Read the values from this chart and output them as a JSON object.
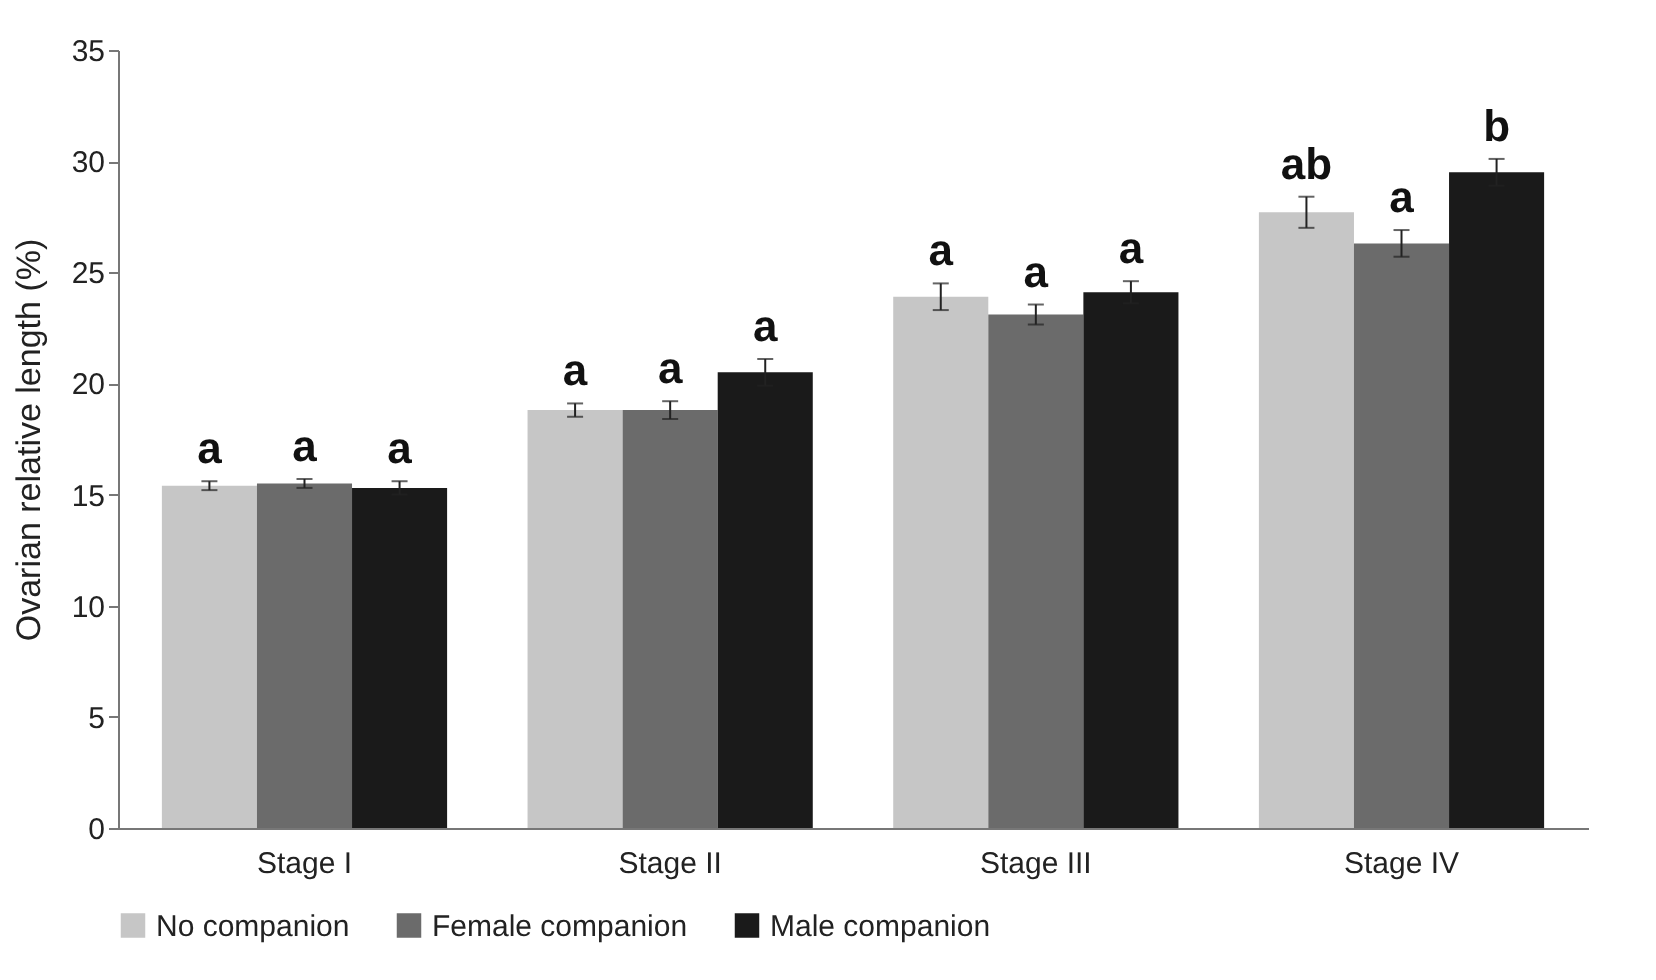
{
  "chart_data": {
    "type": "bar",
    "ylabel": "Ovarian relative length (%)",
    "categories": [
      "Stage I",
      "Stage II",
      "Stage III",
      "Stage IV"
    ],
    "series": [
      {
        "name": "No companion",
        "color": "#c6c6c6",
        "values": [
          15.4,
          18.8,
          23.9,
          27.7
        ],
        "errors": [
          0.2,
          0.3,
          0.6,
          0.7
        ]
      },
      {
        "name": "Female companion",
        "color": "#6b6b6b",
        "values": [
          15.5,
          18.8,
          23.1,
          26.3
        ],
        "errors": [
          0.2,
          0.4,
          0.45,
          0.6
        ]
      },
      {
        "name": "Male companion",
        "color": "#1a1a1a",
        "values": [
          15.3,
          20.5,
          24.1,
          29.5
        ],
        "errors": [
          0.3,
          0.6,
          0.5,
          0.6
        ]
      }
    ],
    "ylim": [
      0,
      35
    ],
    "yticks": [
      0,
      5,
      10,
      15,
      20,
      25,
      30,
      35
    ],
    "grid": false,
    "legend": "bottom",
    "annotations": [
      "a",
      "a",
      "a",
      "a",
      "a",
      "a",
      "a",
      "a",
      "a",
      "ab",
      "a",
      "b"
    ]
  }
}
